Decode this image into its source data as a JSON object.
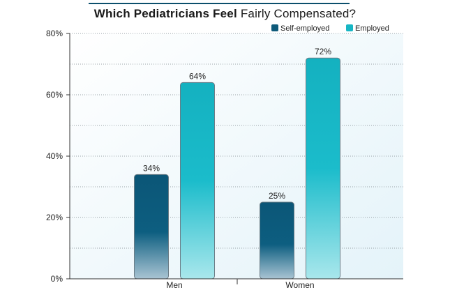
{
  "chart_data": {
    "type": "bar",
    "title_bold": "Which Pediatricians Feel",
    "title_normal": "Fairly Compensated?",
    "categories": [
      "Men",
      "Women"
    ],
    "series": [
      {
        "name": "Self-employed",
        "values": [
          34,
          25
        ],
        "labels": [
          "34%",
          "25%"
        ],
        "color": "#0e5a7a"
      },
      {
        "name": "Employed",
        "values": [
          64,
          72
        ],
        "labels": [
          "64%",
          "72%"
        ],
        "color": "#17b6c4"
      }
    ],
    "yticks": [
      "0%",
      "20%",
      "40%",
      "60%",
      "80%"
    ],
    "ylim": [
      0,
      80
    ],
    "legend": "top-right",
    "grid": true
  }
}
